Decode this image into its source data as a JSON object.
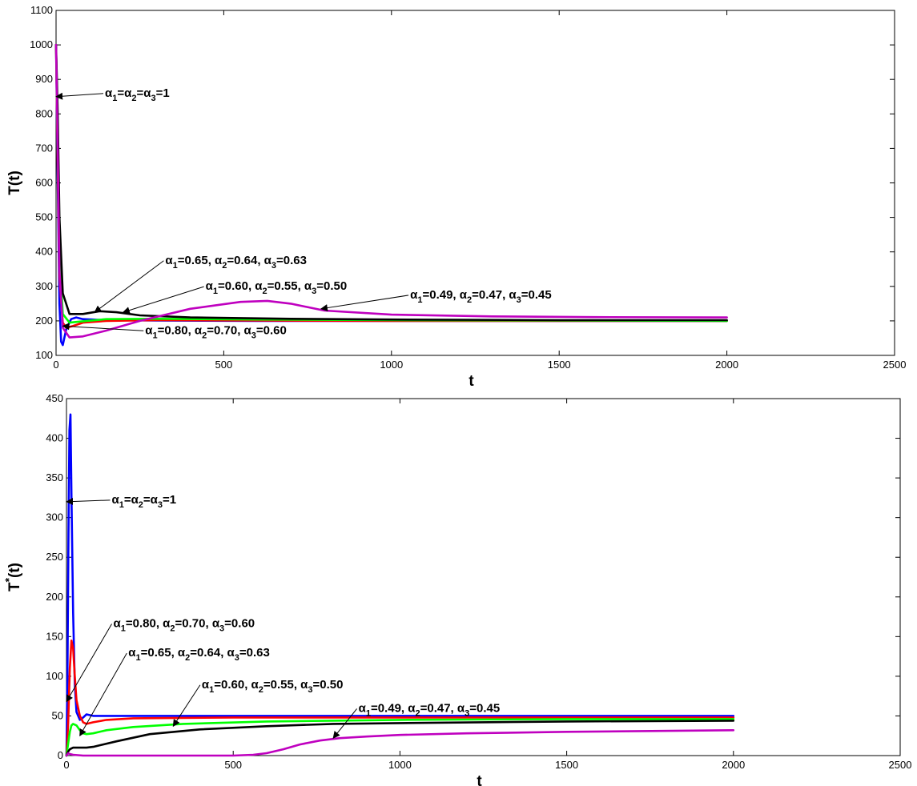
{
  "colors": {
    "blue": "#0000ff",
    "red": "#ff0000",
    "green": "#00ff00",
    "black": "#000000",
    "magenta": "#bf00bf"
  },
  "chart_data": [
    {
      "type": "line",
      "ylabel": "T(t)",
      "xlabel": "t",
      "xlim": [
        0,
        2500
      ],
      "ylim": [
        100,
        1100
      ],
      "xticks": [
        0,
        500,
        1000,
        1500,
        2000,
        2500
      ],
      "yticks": [
        100,
        200,
        300,
        400,
        500,
        600,
        700,
        800,
        900,
        1000,
        1100
      ],
      "grid": false,
      "series": [
        {
          "color": "blue",
          "x": [
            0,
            5,
            10,
            15,
            20,
            30,
            45,
            60,
            80,
            150,
            300,
            600,
            1000,
            1500,
            2000
          ],
          "y": [
            1000,
            600,
            250,
            140,
            130,
            175,
            205,
            210,
            205,
            202,
            201,
            200,
            200,
            200,
            200
          ]
        },
        {
          "color": "red",
          "x": [
            0,
            5,
            10,
            20,
            30,
            50,
            80,
            150,
            300,
            600,
            1000,
            1500,
            2000
          ],
          "y": [
            1000,
            650,
            330,
            195,
            180,
            185,
            195,
            200,
            202,
            201,
            200,
            200,
            200
          ]
        },
        {
          "color": "green",
          "x": [
            0,
            5,
            10,
            20,
            40,
            70,
            150,
            300,
            600,
            1000,
            1500,
            2000
          ],
          "y": [
            1000,
            700,
            400,
            220,
            195,
            198,
            205,
            206,
            204,
            202,
            201,
            200
          ]
        },
        {
          "color": "black",
          "x": [
            0,
            5,
            10,
            20,
            40,
            80,
            130,
            180,
            250,
            400,
            700,
            1000,
            1500,
            2000
          ],
          "y": [
            1000,
            800,
            500,
            280,
            220,
            220,
            228,
            225,
            216,
            210,
            206,
            204,
            202,
            202
          ]
        },
        {
          "color": "magenta",
          "x": [
            0,
            5,
            10,
            20,
            40,
            80,
            150,
            250,
            400,
            550,
            630,
            700,
            800,
            1000,
            1300,
            1600,
            2000
          ],
          "y": [
            1000,
            700,
            350,
            180,
            152,
            155,
            172,
            200,
            235,
            255,
            258,
            250,
            230,
            218,
            213,
            211,
            210
          ]
        }
      ],
      "annotations": [
        {
          "label": "α1=α2=α3=1",
          "x_text": 160,
          "y_text": 850,
          "x_arrow": 0,
          "y_arrow": 850
        },
        {
          "label": "α1=0.65, α2=0.64, α3=0.63",
          "x_text": 340,
          "y_text": 365,
          "x_arrow": 115,
          "y_arrow": 225
        },
        {
          "label": "α1=0.60, α2=0.55, α3=0.50",
          "x_text": 460,
          "y_text": 290,
          "x_arrow": 200,
          "y_arrow": 225
        },
        {
          "label": "α1=0.49, α2=0.47, α3=0.45",
          "x_text": 1070,
          "y_text": 265,
          "x_arrow": 790,
          "y_arrow": 235
        },
        {
          "label": "α1=0.80, α2=0.70, α3=0.60",
          "x_text": 280,
          "y_text": 162,
          "x_arrow": 20,
          "y_arrow": 185
        }
      ]
    },
    {
      "type": "line",
      "ylabel": "T*(t)",
      "xlabel": "t",
      "xlim": [
        0,
        2500
      ],
      "ylim": [
        0,
        450
      ],
      "xticks": [
        0,
        500,
        1000,
        1500,
        2000,
        2500
      ],
      "yticks": [
        0,
        50,
        100,
        150,
        200,
        250,
        300,
        350,
        400,
        450
      ],
      "grid": false,
      "series": [
        {
          "color": "blue",
          "x": [
            0,
            3,
            6,
            9,
            12,
            15,
            20,
            25,
            30,
            40,
            50,
            60,
            80,
            150,
            500,
            1000,
            1500,
            2000
          ],
          "y": [
            0,
            100,
            280,
            410,
            430,
            330,
            180,
            90,
            55,
            45,
            48,
            52,
            50,
            50,
            50,
            50,
            50,
            50
          ]
        },
        {
          "color": "red",
          "x": [
            0,
            5,
            10,
            15,
            20,
            25,
            30,
            40,
            50,
            60,
            80,
            120,
            200,
            500,
            1000,
            1500,
            2000
          ],
          "y": [
            0,
            40,
            110,
            145,
            135,
            100,
            70,
            50,
            42,
            40,
            42,
            45,
            47,
            48,
            48,
            48,
            48
          ]
        },
        {
          "color": "green",
          "x": [
            0,
            5,
            10,
            15,
            20,
            30,
            40,
            50,
            60,
            80,
            120,
            200,
            350,
            600,
            1000,
            1500,
            2000
          ],
          "y": [
            0,
            15,
            30,
            38,
            40,
            38,
            32,
            28,
            27,
            28,
            32,
            36,
            40,
            43,
            45,
            46,
            46
          ]
        },
        {
          "color": "black",
          "x": [
            0,
            5,
            10,
            20,
            40,
            60,
            80,
            100,
            150,
            250,
            400,
            600,
            800,
            1000,
            1500,
            2000
          ],
          "y": [
            0,
            5,
            8,
            10,
            10,
            10,
            11,
            13,
            18,
            27,
            33,
            37,
            40,
            41,
            43,
            44
          ]
        },
        {
          "color": "magenta",
          "x": [
            0,
            5,
            10,
            20,
            50,
            200,
            400,
            500,
            560,
            600,
            650,
            700,
            760,
            820,
            900,
            1000,
            1200,
            1500,
            2000
          ],
          "y": [
            0,
            3,
            2,
            1,
            0,
            0,
            0,
            0,
            1,
            3,
            8,
            14,
            19,
            22,
            24,
            26,
            28,
            30,
            32
          ]
        }
      ],
      "annotations": [
        {
          "label": "α1=α2=α3=1",
          "x_text": 150,
          "y_text": 318,
          "x_arrow": 0,
          "y_arrow": 320
        },
        {
          "label": "α1=0.80, α2=0.70, α3=0.60",
          "x_text": 155,
          "y_text": 162,
          "x_arrow": 0,
          "y_arrow": 68
        },
        {
          "label": "α1=0.65, α2=0.64, α3=0.63",
          "x_text": 200,
          "y_text": 125,
          "x_arrow": 40,
          "y_arrow": 25
        },
        {
          "label": "α1=0.60, α2=0.55, α3=0.50",
          "x_text": 420,
          "y_text": 85,
          "x_arrow": 320,
          "y_arrow": 37
        },
        {
          "label": "α1=0.49, α2=0.47, α3=0.45",
          "x_text": 890,
          "y_text": 55,
          "x_arrow": 800,
          "y_arrow": 22
        }
      ]
    }
  ]
}
